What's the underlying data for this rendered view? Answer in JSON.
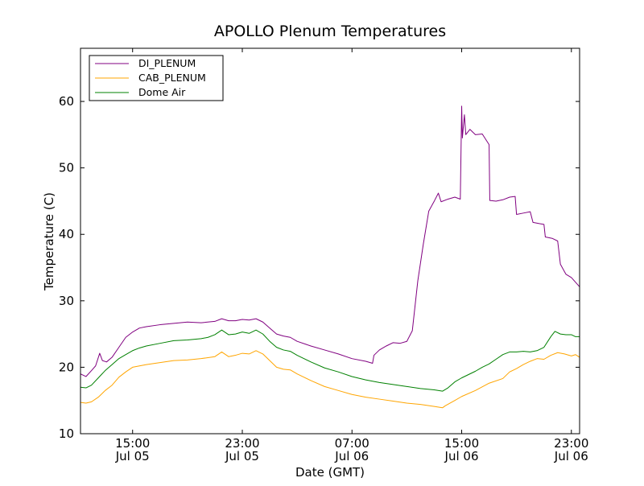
{
  "chart_data": {
    "type": "line",
    "title": "APOLLO Plenum Temperatures",
    "xlabel": "Date (GMT)",
    "ylabel": "Temperature (C)",
    "x_unit": "hours since Jul 05 00:00 GMT",
    "xlim": [
      11.2,
      47.6
    ],
    "ylim": [
      10,
      68
    ],
    "x_ticks": [
      {
        "x": 15,
        "line1": "15:00",
        "line2": "Jul 05"
      },
      {
        "x": 23,
        "line1": "23:00",
        "line2": "Jul 05"
      },
      {
        "x": 31,
        "line1": "07:00",
        "line2": "Jul 06"
      },
      {
        "x": 39,
        "line1": "15:00",
        "line2": "Jul 06"
      },
      {
        "x": 47,
        "line1": "23:00",
        "line2": "Jul 06"
      }
    ],
    "y_ticks": [
      10,
      20,
      30,
      40,
      50,
      60
    ],
    "grid": false,
    "legend_position": "top-left",
    "series": [
      {
        "name": "DI_PLENUM",
        "color": "#800080",
        "points": [
          [
            11.2,
            19.0
          ],
          [
            11.6,
            18.6
          ],
          [
            12.0,
            19.5
          ],
          [
            12.3,
            20.2
          ],
          [
            12.6,
            22.1
          ],
          [
            12.8,
            21.0
          ],
          [
            13.1,
            20.8
          ],
          [
            13.5,
            21.5
          ],
          [
            14.0,
            23.0
          ],
          [
            14.5,
            24.5
          ],
          [
            15.0,
            25.3
          ],
          [
            15.5,
            25.9
          ],
          [
            16.0,
            26.1
          ],
          [
            17.0,
            26.4
          ],
          [
            18.0,
            26.6
          ],
          [
            19.0,
            26.8
          ],
          [
            20.0,
            26.7
          ],
          [
            21.0,
            26.9
          ],
          [
            21.5,
            27.3
          ],
          [
            22.0,
            27.0
          ],
          [
            22.5,
            27.0
          ],
          [
            23.0,
            27.2
          ],
          [
            23.5,
            27.1
          ],
          [
            24.0,
            27.3
          ],
          [
            24.5,
            26.8
          ],
          [
            25.0,
            25.9
          ],
          [
            25.5,
            25.0
          ],
          [
            26.0,
            24.7
          ],
          [
            26.5,
            24.5
          ],
          [
            27.0,
            23.9
          ],
          [
            28.0,
            23.2
          ],
          [
            29.0,
            22.6
          ],
          [
            30.0,
            22.0
          ],
          [
            31.0,
            21.3
          ],
          [
            32.0,
            20.9
          ],
          [
            32.5,
            20.6
          ],
          [
            32.6,
            21.8
          ],
          [
            33.0,
            22.6
          ],
          [
            33.5,
            23.2
          ],
          [
            34.0,
            23.7
          ],
          [
            34.5,
            23.6
          ],
          [
            35.0,
            23.9
          ],
          [
            35.4,
            25.5
          ],
          [
            35.8,
            33.0
          ],
          [
            36.2,
            38.5
          ],
          [
            36.6,
            43.5
          ],
          [
            37.0,
            45.0
          ],
          [
            37.3,
            46.2
          ],
          [
            37.5,
            44.9
          ],
          [
            38.0,
            45.3
          ],
          [
            38.5,
            45.6
          ],
          [
            38.9,
            45.3
          ],
          [
            39.0,
            59.3
          ],
          [
            39.05,
            54.5
          ],
          [
            39.2,
            58.0
          ],
          [
            39.3,
            55.0
          ],
          [
            39.6,
            55.8
          ],
          [
            40.0,
            55.0
          ],
          [
            40.5,
            55.1
          ],
          [
            41.0,
            53.5
          ],
          [
            41.05,
            45.1
          ],
          [
            41.5,
            45.0
          ],
          [
            42.0,
            45.2
          ],
          [
            42.5,
            45.6
          ],
          [
            42.9,
            45.7
          ],
          [
            43.0,
            43.0
          ],
          [
            43.5,
            43.2
          ],
          [
            44.0,
            43.4
          ],
          [
            44.2,
            41.8
          ],
          [
            44.7,
            41.6
          ],
          [
            45.0,
            41.5
          ],
          [
            45.1,
            39.6
          ],
          [
            45.6,
            39.4
          ],
          [
            46.0,
            39.0
          ],
          [
            46.2,
            35.5
          ],
          [
            46.6,
            34.0
          ],
          [
            47.0,
            33.5
          ],
          [
            47.3,
            32.8
          ],
          [
            47.6,
            32.1
          ]
        ]
      },
      {
        "name": "CAB_PLENUM",
        "color": "#ffa500",
        "points": [
          [
            11.2,
            14.7
          ],
          [
            11.6,
            14.6
          ],
          [
            12.0,
            14.8
          ],
          [
            12.5,
            15.5
          ],
          [
            13.0,
            16.5
          ],
          [
            13.5,
            17.3
          ],
          [
            14.0,
            18.5
          ],
          [
            14.5,
            19.3
          ],
          [
            15.0,
            20.0
          ],
          [
            15.5,
            20.2
          ],
          [
            16.0,
            20.4
          ],
          [
            17.0,
            20.7
          ],
          [
            18.0,
            21.0
          ],
          [
            19.0,
            21.1
          ],
          [
            20.0,
            21.3
          ],
          [
            21.0,
            21.6
          ],
          [
            21.5,
            22.3
          ],
          [
            22.0,
            21.6
          ],
          [
            22.5,
            21.8
          ],
          [
            23.0,
            22.1
          ],
          [
            23.5,
            22.0
          ],
          [
            24.0,
            22.5
          ],
          [
            24.5,
            22.0
          ],
          [
            25.0,
            21.0
          ],
          [
            25.5,
            20.0
          ],
          [
            26.0,
            19.7
          ],
          [
            26.5,
            19.6
          ],
          [
            27.0,
            19.0
          ],
          [
            28.0,
            18.0
          ],
          [
            29.0,
            17.1
          ],
          [
            30.0,
            16.5
          ],
          [
            31.0,
            15.9
          ],
          [
            32.0,
            15.5
          ],
          [
            33.0,
            15.2
          ],
          [
            34.0,
            14.9
          ],
          [
            35.0,
            14.6
          ],
          [
            36.0,
            14.4
          ],
          [
            37.0,
            14.1
          ],
          [
            37.6,
            13.9
          ],
          [
            37.8,
            14.2
          ],
          [
            38.5,
            15.0
          ],
          [
            39.0,
            15.6
          ],
          [
            40.0,
            16.5
          ],
          [
            41.0,
            17.6
          ],
          [
            42.0,
            18.3
          ],
          [
            42.5,
            19.3
          ],
          [
            43.0,
            19.8
          ],
          [
            43.5,
            20.4
          ],
          [
            44.0,
            20.9
          ],
          [
            44.5,
            21.3
          ],
          [
            45.0,
            21.2
          ],
          [
            45.5,
            21.8
          ],
          [
            46.0,
            22.2
          ],
          [
            46.5,
            22.0
          ],
          [
            47.0,
            21.7
          ],
          [
            47.3,
            21.9
          ],
          [
            47.6,
            21.5
          ]
        ]
      },
      {
        "name": "Dome Air",
        "color": "#008000",
        "points": [
          [
            11.2,
            17.0
          ],
          [
            11.6,
            16.9
          ],
          [
            12.0,
            17.3
          ],
          [
            12.5,
            18.4
          ],
          [
            13.0,
            19.5
          ],
          [
            13.5,
            20.4
          ],
          [
            14.0,
            21.3
          ],
          [
            14.5,
            21.9
          ],
          [
            15.0,
            22.5
          ],
          [
            15.5,
            22.9
          ],
          [
            16.0,
            23.2
          ],
          [
            17.0,
            23.6
          ],
          [
            18.0,
            24.0
          ],
          [
            19.0,
            24.1
          ],
          [
            20.0,
            24.3
          ],
          [
            20.5,
            24.5
          ],
          [
            21.0,
            24.9
          ],
          [
            21.5,
            25.6
          ],
          [
            22.0,
            24.9
          ],
          [
            22.5,
            25.0
          ],
          [
            23.0,
            25.3
          ],
          [
            23.5,
            25.1
          ],
          [
            24.0,
            25.6
          ],
          [
            24.5,
            25.0
          ],
          [
            25.0,
            23.9
          ],
          [
            25.5,
            23.0
          ],
          [
            26.0,
            22.6
          ],
          [
            26.5,
            22.4
          ],
          [
            27.0,
            21.8
          ],
          [
            28.0,
            20.8
          ],
          [
            29.0,
            19.9
          ],
          [
            30.0,
            19.3
          ],
          [
            31.0,
            18.6
          ],
          [
            32.0,
            18.1
          ],
          [
            33.0,
            17.7
          ],
          [
            34.0,
            17.4
          ],
          [
            35.0,
            17.1
          ],
          [
            36.0,
            16.8
          ],
          [
            37.0,
            16.6
          ],
          [
            37.6,
            16.4
          ],
          [
            38.0,
            16.9
          ],
          [
            38.5,
            17.8
          ],
          [
            39.0,
            18.4
          ],
          [
            40.0,
            19.4
          ],
          [
            40.5,
            20.0
          ],
          [
            41.0,
            20.5
          ],
          [
            41.5,
            21.2
          ],
          [
            42.0,
            21.9
          ],
          [
            42.5,
            22.3
          ],
          [
            43.0,
            22.3
          ],
          [
            43.5,
            22.4
          ],
          [
            44.0,
            22.3
          ],
          [
            44.5,
            22.5
          ],
          [
            45.0,
            23.0
          ],
          [
            45.5,
            24.6
          ],
          [
            45.8,
            25.4
          ],
          [
            46.2,
            25.0
          ],
          [
            46.6,
            24.9
          ],
          [
            47.0,
            24.9
          ],
          [
            47.3,
            24.6
          ],
          [
            47.6,
            24.6
          ]
        ]
      }
    ]
  }
}
